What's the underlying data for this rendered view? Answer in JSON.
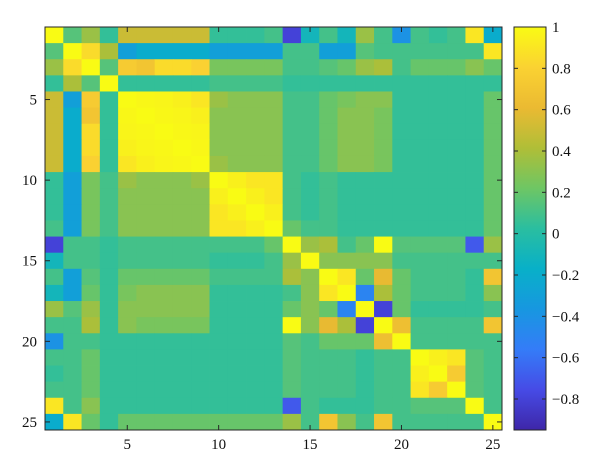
{
  "chart_data": {
    "type": "heatmap",
    "title": "",
    "xlabel": "",
    "ylabel": "",
    "n_rows": 25,
    "n_cols": 25,
    "x_ticks": [
      5,
      10,
      15,
      20,
      25
    ],
    "y_ticks": [
      5,
      10,
      15,
      20,
      25
    ],
    "colorbar": {
      "range": [
        -0.95,
        1
      ],
      "ticks": [
        1,
        0.8,
        0.6,
        0.4,
        0.2,
        0,
        -0.2,
        -0.4,
        -0.6,
        -0.8
      ],
      "tick_labels": [
        "1",
        "0.8",
        "0.6",
        "0.4",
        "0.2",
        "0",
        "−0.2",
        "−0.4",
        "−0.6",
        "−0.8"
      ],
      "colormap": "parula",
      "placement": "right"
    },
    "values": [
      [
        1.0,
        0.15,
        0.35,
        0.05,
        0.5,
        0.5,
        0.5,
        0.5,
        0.5,
        0.05,
        0.05,
        0.05,
        0.1,
        -0.8,
        -0.1,
        0.1,
        -0.1,
        0.35,
        0.1,
        -0.4,
        0.1,
        0.05,
        0.1,
        0.9,
        -0.2
      ],
      [
        0.15,
        1.0,
        0.85,
        0.4,
        -0.3,
        -0.2,
        -0.2,
        -0.2,
        -0.2,
        -0.3,
        -0.3,
        -0.3,
        -0.3,
        0.1,
        0.1,
        -0.3,
        -0.3,
        0.15,
        0.1,
        0.1,
        0.1,
        0.1,
        0.1,
        0.1,
        0.9
      ],
      [
        0.35,
        0.85,
        1.0,
        0.15,
        0.75,
        0.7,
        0.85,
        0.85,
        0.8,
        0.25,
        0.25,
        0.25,
        0.25,
        0.1,
        0.1,
        0.15,
        0.2,
        0.35,
        0.4,
        0.1,
        0.2,
        0.2,
        0.2,
        0.3,
        0.2
      ],
      [
        0.05,
        0.4,
        0.15,
        1.0,
        0.05,
        0.05,
        0.05,
        0.05,
        0.05,
        0.1,
        0.1,
        0.1,
        0.1,
        0.05,
        0.05,
        0.05,
        0.05,
        0.05,
        0.05,
        0.05,
        0.05,
        0.05,
        0.05,
        0.05,
        0.05
      ],
      [
        0.5,
        -0.3,
        0.75,
        0.05,
        1.0,
        0.98,
        0.97,
        0.95,
        0.9,
        0.35,
        0.3,
        0.3,
        0.3,
        0.1,
        0.1,
        0.2,
        0.25,
        0.3,
        0.3,
        0.05,
        0.05,
        0.05,
        0.05,
        0.05,
        0.2
      ],
      [
        0.5,
        -0.2,
        0.7,
        0.05,
        0.98,
        1.0,
        0.98,
        0.97,
        0.95,
        0.3,
        0.3,
        0.3,
        0.3,
        0.1,
        0.1,
        0.2,
        0.3,
        0.3,
        0.25,
        0.05,
        0.05,
        0.05,
        0.05,
        0.05,
        0.2
      ],
      [
        0.5,
        -0.2,
        0.85,
        0.05,
        0.97,
        0.98,
        1.0,
        0.98,
        0.97,
        0.3,
        0.3,
        0.3,
        0.3,
        0.1,
        0.1,
        0.2,
        0.3,
        0.3,
        0.25,
        0.05,
        0.05,
        0.05,
        0.05,
        0.05,
        0.2
      ],
      [
        0.5,
        -0.2,
        0.85,
        0.05,
        0.95,
        0.97,
        0.98,
        1.0,
        0.98,
        0.3,
        0.3,
        0.3,
        0.3,
        0.1,
        0.1,
        0.2,
        0.3,
        0.3,
        0.25,
        0.05,
        0.05,
        0.05,
        0.05,
        0.05,
        0.2
      ],
      [
        0.5,
        -0.2,
        0.8,
        0.05,
        0.9,
        0.95,
        0.97,
        0.98,
        1.0,
        0.35,
        0.3,
        0.3,
        0.3,
        0.1,
        0.1,
        0.2,
        0.3,
        0.3,
        0.25,
        0.05,
        0.05,
        0.05,
        0.05,
        0.05,
        0.2
      ],
      [
        0.05,
        -0.3,
        0.25,
        0.1,
        0.35,
        0.3,
        0.3,
        0.3,
        0.35,
        1.0,
        0.95,
        0.9,
        0.9,
        0.1,
        0.05,
        0.1,
        0.05,
        0.05,
        0.05,
        0.05,
        0.05,
        0.05,
        0.05,
        0.05,
        0.2
      ],
      [
        0.05,
        -0.3,
        0.25,
        0.1,
        0.3,
        0.3,
        0.3,
        0.3,
        0.3,
        0.95,
        1.0,
        0.95,
        0.9,
        0.1,
        0.05,
        0.1,
        0.05,
        0.05,
        0.05,
        0.05,
        0.05,
        0.05,
        0.05,
        0.05,
        0.2
      ],
      [
        0.05,
        -0.3,
        0.25,
        0.1,
        0.3,
        0.3,
        0.3,
        0.3,
        0.3,
        0.9,
        0.95,
        1.0,
        0.95,
        0.1,
        0.05,
        0.1,
        0.05,
        0.05,
        0.05,
        0.05,
        0.05,
        0.05,
        0.05,
        0.05,
        0.2
      ],
      [
        0.1,
        -0.3,
        0.25,
        0.1,
        0.3,
        0.3,
        0.3,
        0.3,
        0.3,
        0.9,
        0.9,
        0.95,
        1.0,
        0.2,
        0.1,
        0.1,
        0.05,
        0.05,
        0.05,
        0.05,
        0.05,
        0.05,
        0.05,
        0.05,
        0.2
      ],
      [
        -0.8,
        0.1,
        0.1,
        0.05,
        0.1,
        0.1,
        0.1,
        0.1,
        0.1,
        0.1,
        0.1,
        0.1,
        0.2,
        1.0,
        0.35,
        0.4,
        0.1,
        0.2,
        1.0,
        0.15,
        0.15,
        0.15,
        0.15,
        -0.7,
        0.35
      ],
      [
        -0.1,
        0.1,
        0.1,
        0.05,
        0.1,
        0.1,
        0.1,
        0.1,
        0.1,
        0.05,
        0.05,
        0.05,
        0.1,
        0.35,
        1.0,
        0.3,
        0.3,
        0.3,
        0.3,
        0.1,
        0.1,
        0.1,
        0.1,
        0.1,
        0.1
      ],
      [
        0.1,
        -0.3,
        0.15,
        0.05,
        0.2,
        0.2,
        0.2,
        0.2,
        0.2,
        0.1,
        0.1,
        0.1,
        0.1,
        0.4,
        0.3,
        1.0,
        0.9,
        0.2,
        0.6,
        0.2,
        0.1,
        0.1,
        0.1,
        0.05,
        0.7
      ],
      [
        -0.1,
        -0.3,
        0.2,
        0.05,
        0.25,
        0.3,
        0.3,
        0.3,
        0.3,
        0.05,
        0.05,
        0.05,
        0.05,
        0.1,
        0.3,
        0.9,
        1.0,
        -0.5,
        0.4,
        0.2,
        0.1,
        0.1,
        0.1,
        0.05,
        0.3
      ],
      [
        0.35,
        0.15,
        0.35,
        0.05,
        0.3,
        0.3,
        0.3,
        0.3,
        0.3,
        0.05,
        0.05,
        0.05,
        0.05,
        0.2,
        0.3,
        0.2,
        -0.5,
        1.0,
        -0.8,
        0.2,
        0.05,
        0.05,
        0.05,
        0.05,
        0.1
      ],
      [
        0.1,
        0.1,
        0.4,
        0.05,
        0.3,
        0.25,
        0.25,
        0.25,
        0.25,
        0.05,
        0.05,
        0.05,
        0.05,
        1.0,
        0.3,
        0.6,
        0.4,
        -0.8,
        1.0,
        0.65,
        0.1,
        0.1,
        0.1,
        0.1,
        0.7
      ],
      [
        -0.4,
        0.1,
        0.1,
        0.05,
        0.05,
        0.05,
        0.05,
        0.05,
        0.05,
        0.05,
        0.05,
        0.05,
        0.05,
        0.15,
        0.1,
        0.2,
        0.2,
        0.2,
        0.65,
        1.0,
        0.1,
        0.1,
        0.1,
        0.1,
        0.1
      ],
      [
        0.1,
        0.1,
        0.2,
        0.05,
        0.05,
        0.05,
        0.05,
        0.05,
        0.05,
        0.05,
        0.05,
        0.05,
        0.05,
        0.15,
        0.1,
        0.1,
        0.1,
        0.05,
        0.1,
        0.1,
        1.0,
        0.95,
        0.9,
        0.15,
        0.1
      ],
      [
        0.05,
        0.1,
        0.2,
        0.05,
        0.05,
        0.05,
        0.05,
        0.05,
        0.05,
        0.05,
        0.05,
        0.05,
        0.05,
        0.15,
        0.1,
        0.1,
        0.1,
        0.05,
        0.1,
        0.1,
        0.95,
        1.0,
        0.75,
        0.15,
        0.1
      ],
      [
        0.1,
        0.1,
        0.2,
        0.05,
        0.05,
        0.05,
        0.05,
        0.05,
        0.05,
        0.05,
        0.05,
        0.05,
        0.05,
        0.15,
        0.1,
        0.1,
        0.1,
        0.05,
        0.1,
        0.1,
        0.9,
        0.75,
        1.0,
        0.15,
        0.1
      ],
      [
        0.9,
        0.1,
        0.3,
        0.05,
        0.05,
        0.05,
        0.05,
        0.05,
        0.05,
        0.05,
        0.05,
        0.05,
        0.05,
        -0.7,
        0.1,
        0.05,
        0.05,
        0.05,
        0.1,
        0.1,
        0.15,
        0.15,
        0.15,
        1.0,
        0.1
      ],
      [
        -0.2,
        0.9,
        0.2,
        0.05,
        0.2,
        0.2,
        0.2,
        0.2,
        0.2,
        0.2,
        0.2,
        0.2,
        0.2,
        0.35,
        0.1,
        0.7,
        0.3,
        0.1,
        0.7,
        0.1,
        0.1,
        0.1,
        0.1,
        0.1,
        1.0
      ]
    ]
  }
}
